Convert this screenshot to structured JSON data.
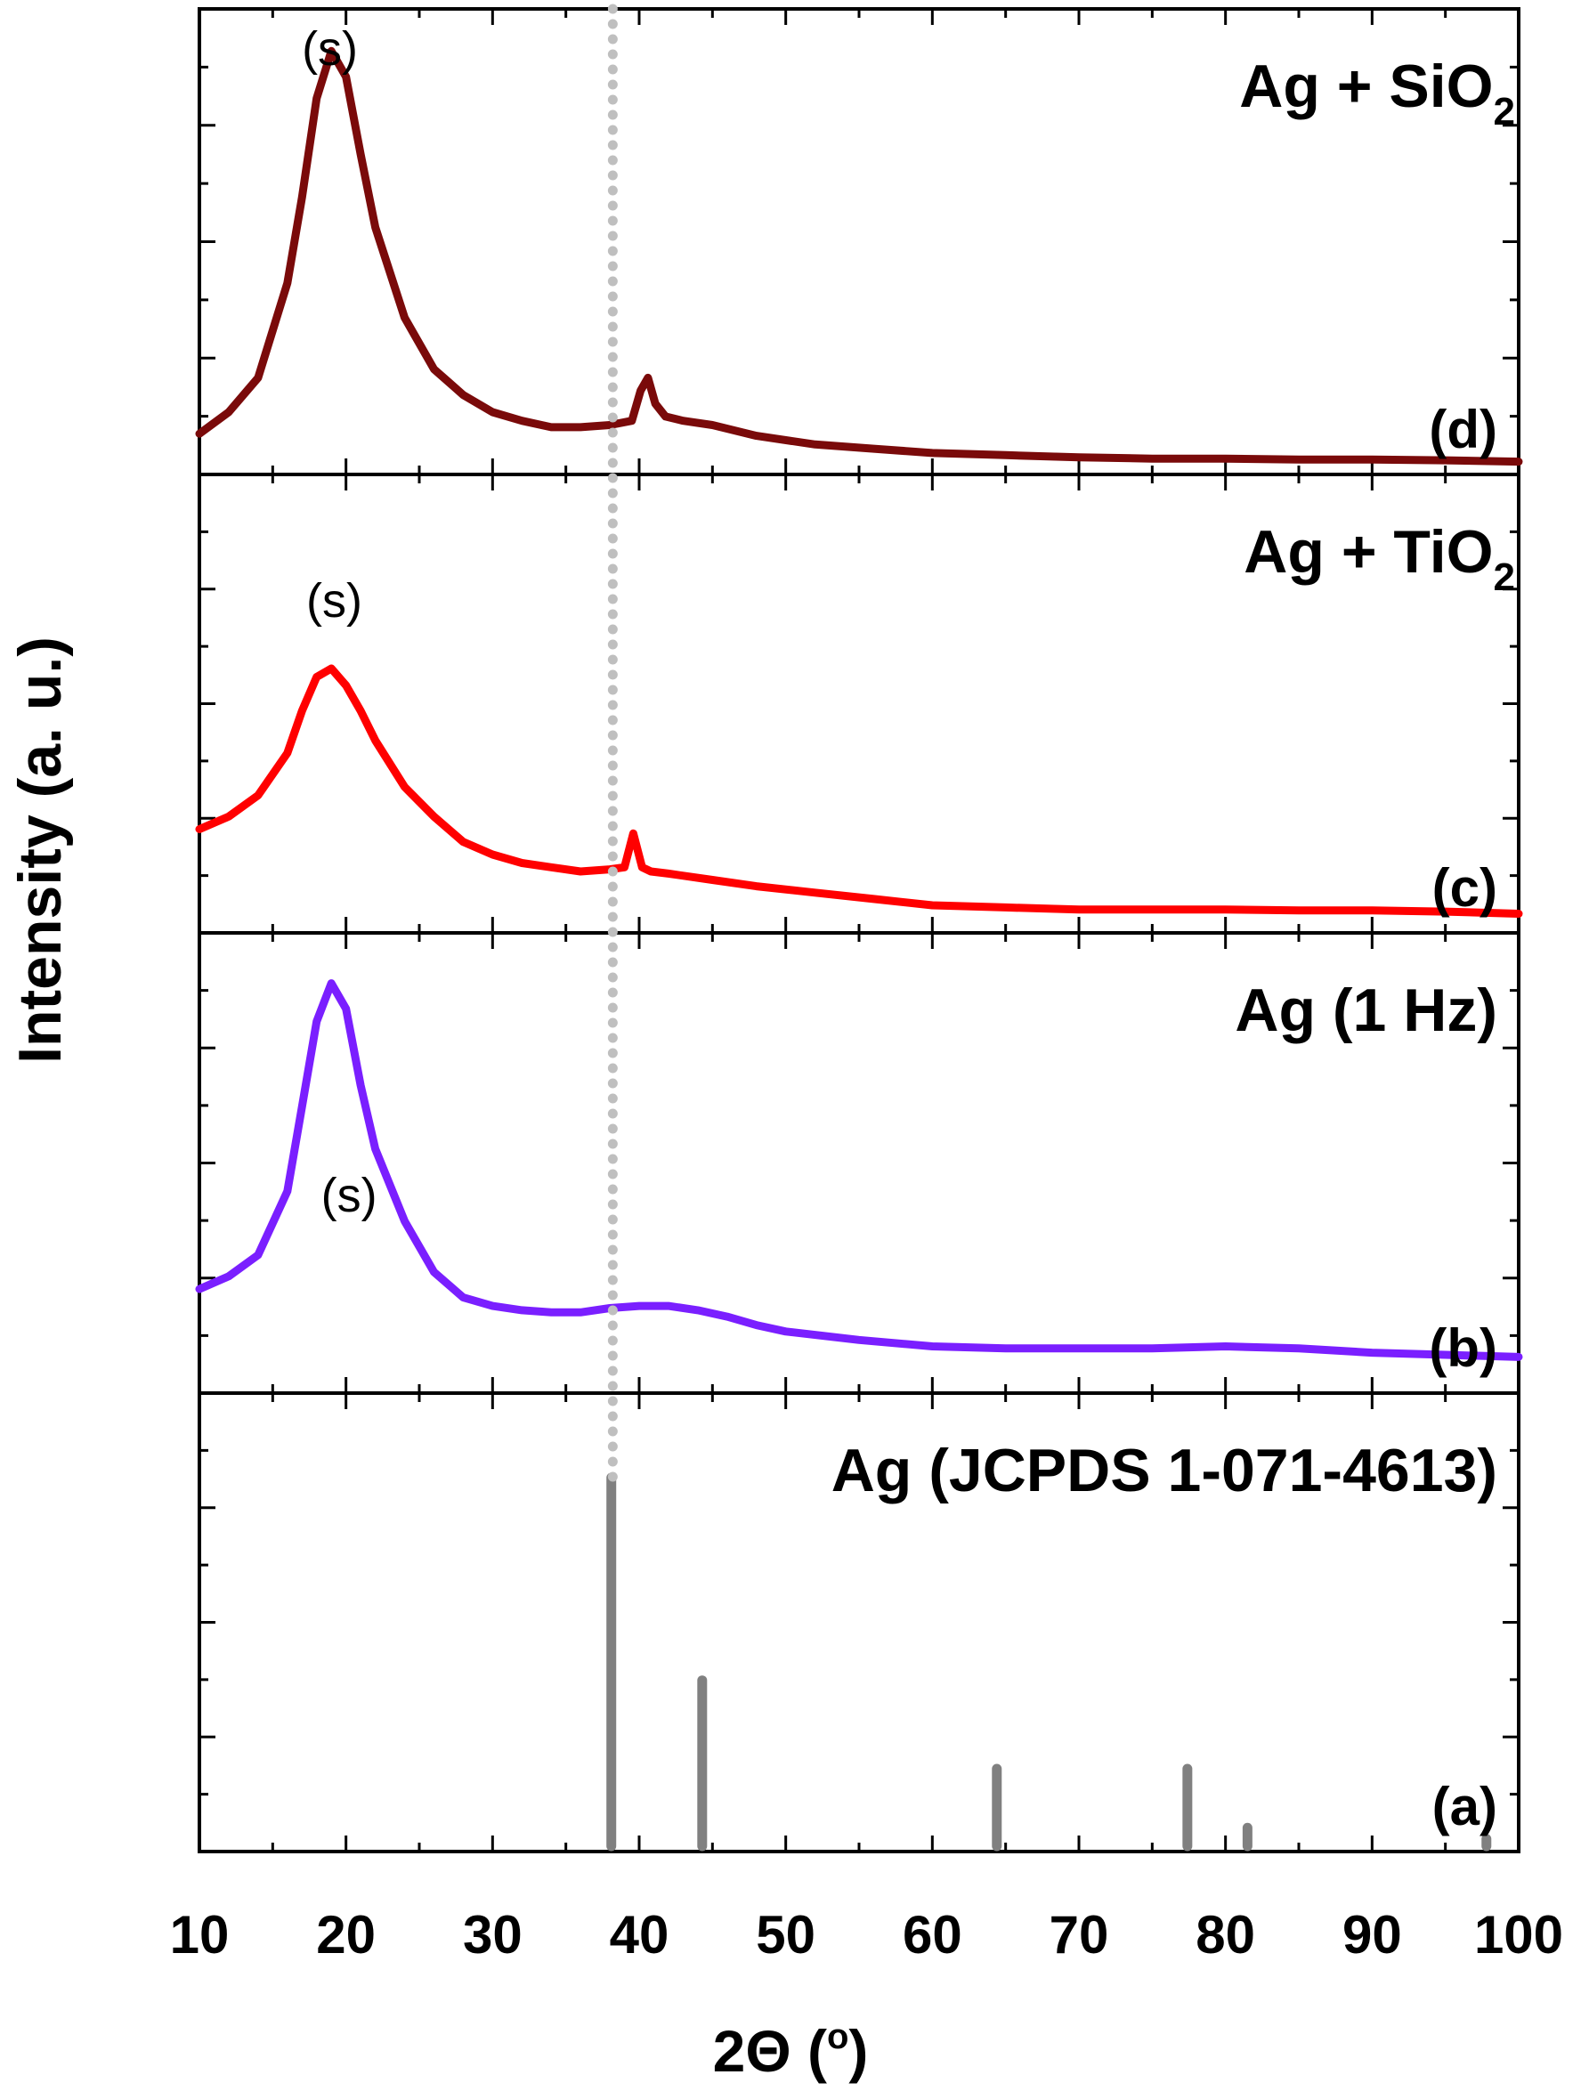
{
  "chart_data": {
    "type": "line",
    "title": "",
    "xlabel": "2Θ (°)",
    "xlabel_parts": {
      "text": "2Θ (",
      "sup": "o",
      "close": ")"
    },
    "ylabel": "Intensity (a. u.)",
    "xlim": [
      10,
      100
    ],
    "xticks": [
      "10",
      "20",
      "30",
      "40",
      "50",
      "60",
      "70",
      "80",
      "90",
      "100"
    ],
    "grid": false,
    "reference_line": {
      "x": 38.2,
      "style": "dotted",
      "color": "#bfbfbf"
    },
    "panels": [
      {
        "id": "d",
        "label": "(d)",
        "title": "Ag + SiO",
        "title_sub": "2",
        "color": "#7a0a0a",
        "annotation": "(s)",
        "annotation_x": 18.9,
        "series": {
          "x": [
            10,
            12,
            14,
            16,
            17,
            18,
            19,
            20,
            21,
            22,
            24,
            26,
            28,
            30,
            32,
            34,
            36,
            38,
            39.5,
            40.1,
            40.6,
            41.1,
            41.8,
            43,
            45,
            48,
            52,
            56,
            60,
            65,
            70,
            75,
            80,
            85,
            90,
            95,
            100
          ],
          "y": [
            0.07,
            0.12,
            0.2,
            0.42,
            0.62,
            0.85,
            0.96,
            0.9,
            0.72,
            0.55,
            0.34,
            0.22,
            0.16,
            0.12,
            0.1,
            0.085,
            0.085,
            0.09,
            0.1,
            0.17,
            0.2,
            0.14,
            0.11,
            0.1,
            0.09,
            0.065,
            0.045,
            0.035,
            0.025,
            0.02,
            0.015,
            0.012,
            0.012,
            0.01,
            0.01,
            0.008,
            0.005
          ]
        }
      },
      {
        "id": "c",
        "label": "(c)",
        "title": "Ag + TiO",
        "title_sub": "2",
        "color": "#ff0000",
        "annotation": "(s)",
        "annotation_x": 19.2,
        "series": {
          "x": [
            10,
            12,
            14,
            16,
            17,
            18,
            19,
            20,
            21,
            22,
            24,
            26,
            28,
            30,
            32,
            34,
            36,
            38,
            39.0,
            39.6,
            40.2,
            40.8,
            42,
            45,
            48,
            52,
            56,
            60,
            65,
            70,
            75,
            80,
            85,
            90,
            95,
            100
          ],
          "y": [
            0.22,
            0.25,
            0.3,
            0.4,
            0.5,
            0.58,
            0.6,
            0.56,
            0.5,
            0.43,
            0.32,
            0.25,
            0.19,
            0.16,
            0.14,
            0.13,
            0.12,
            0.125,
            0.13,
            0.21,
            0.13,
            0.12,
            0.115,
            0.1,
            0.085,
            0.07,
            0.055,
            0.04,
            0.035,
            0.03,
            0.03,
            0.03,
            0.028,
            0.028,
            0.025,
            0.02
          ]
        }
      },
      {
        "id": "b",
        "label": "(b)",
        "title": "Ag (1 Hz)",
        "title_sub": "",
        "color": "#7a1fff",
        "annotation": "(s)",
        "annotation_x": 19.6,
        "series": {
          "x": [
            10,
            12,
            14,
            16,
            17,
            18,
            19,
            20,
            21,
            22,
            24,
            26,
            28,
            30,
            32,
            34,
            36,
            38,
            40,
            42,
            44,
            46,
            48,
            50,
            55,
            60,
            65,
            70,
            75,
            80,
            85,
            90,
            95,
            100
          ],
          "y": [
            0.22,
            0.25,
            0.3,
            0.45,
            0.65,
            0.85,
            0.94,
            0.88,
            0.7,
            0.55,
            0.38,
            0.26,
            0.2,
            0.18,
            0.17,
            0.165,
            0.165,
            0.175,
            0.18,
            0.18,
            0.17,
            0.155,
            0.135,
            0.12,
            0.1,
            0.085,
            0.08,
            0.08,
            0.08,
            0.085,
            0.08,
            0.07,
            0.065,
            0.06
          ]
        }
      },
      {
        "id": "a",
        "label": "(a)",
        "title": "Ag (JCPDS 1-071-4613)",
        "title_sub": "",
        "color": "#808080",
        "type": "stick",
        "series": {
          "x": [
            38.1,
            44.3,
            64.4,
            77.4,
            81.5,
            97.8
          ],
          "y": [
            100,
            45,
            21,
            21,
            5,
            2
          ]
        }
      }
    ]
  }
}
